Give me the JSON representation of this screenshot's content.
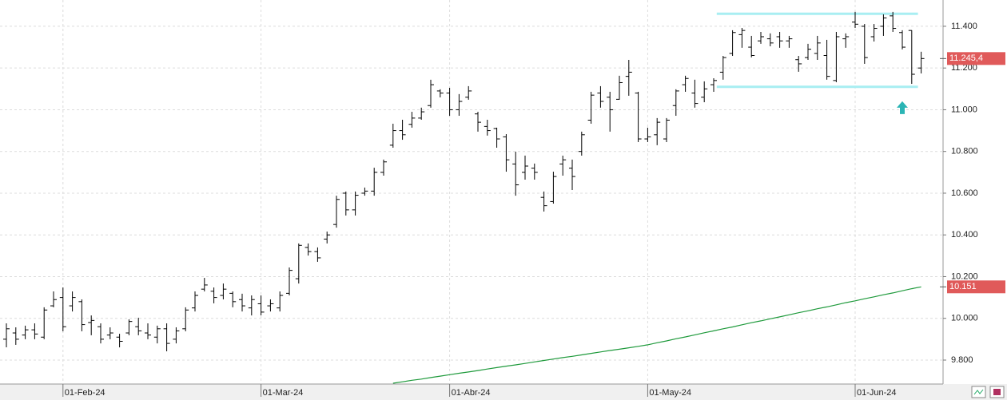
{
  "chart_data": {
    "type": "ohlc",
    "categories": [
      null,
      null,
      null,
      null,
      null,
      null,
      "01-Feb-24",
      null,
      null,
      null,
      null,
      null,
      null,
      null,
      null,
      null,
      null,
      null,
      null,
      null,
      null,
      null,
      null,
      null,
      null,
      null,
      null,
      "01-Mar-24",
      null,
      null,
      null,
      null,
      null,
      null,
      null,
      null,
      null,
      null,
      null,
      null,
      null,
      null,
      null,
      null,
      null,
      null,
      null,
      "01-Abr-24",
      null,
      null,
      null,
      null,
      null,
      null,
      null,
      null,
      null,
      null,
      null,
      null,
      null,
      null,
      null,
      null,
      null,
      null,
      null,
      null,
      "01-May-24",
      null,
      null,
      null,
      null,
      null,
      null,
      null,
      null,
      null,
      null,
      null,
      null,
      null,
      null,
      null,
      null,
      null,
      null,
      null,
      null,
      null,
      "01-Jun-24",
      null,
      null,
      null,
      null,
      null,
      null,
      null
    ],
    "series": [
      {
        "type": "ohlc",
        "color": "#000000",
        "open": [
          9900,
          9930,
          9920,
          9945,
          9910,
          10060,
          10100,
          10060,
          10080,
          9980,
          9960,
          9920,
          9910,
          9930,
          9960,
          9930,
          9910,
          9950,
          9900,
          9950,
          10050,
          10140,
          10130,
          10110,
          10120,
          10090,
          10050,
          10070,
          10060,
          10050,
          10120,
          10190,
          10340,
          10320,
          10380,
          10450,
          10600,
          10520,
          10600,
          10610,
          10700,
          10830,
          10900,
          10930,
          10960,
          11020,
          11090,
          11080,
          11000,
          11060,
          10980,
          10920,
          10910,
          10870,
          10740,
          10700,
          10720,
          10580,
          10560,
          10740,
          10720,
          10800,
          10950,
          11080,
          11060,
          11050,
          11160,
          11080,
          10860,
          10880,
          10860,
          11020,
          11120,
          11080,
          11060,
          11120,
          11180,
          11270,
          11360,
          11300,
          11330,
          11340,
          11350,
          11330,
          11240,
          11250,
          11270,
          11260,
          11140,
          11340,
          11420,
          11400,
          11350,
          11400,
          11450,
          11370,
          11380,
          11200
        ],
        "high": [
          9976,
          9957,
          9965,
          9976,
          10053,
          10129,
          10148,
          10129,
          10091,
          10014,
          9976,
          9957,
          9926,
          9995,
          10003,
          9976,
          9965,
          9976,
          9957,
          10053,
          10129,
          10194,
          10148,
          10167,
          10129,
          10118,
          10110,
          10110,
          10091,
          10129,
          10244,
          10359,
          10359,
          10340,
          10416,
          10588,
          10608,
          10608,
          10627,
          10722,
          10761,
          10933,
          10952,
          10990,
          11010,
          11144,
          11098,
          11105,
          11075,
          11113,
          10990,
          10952,
          10914,
          10883,
          10799,
          10780,
          10742,
          10608,
          10703,
          10780,
          10761,
          10895,
          11086,
          11113,
          11086,
          11163,
          11239,
          11086,
          10914,
          10960,
          10960,
          11098,
          11163,
          11144,
          11136,
          11151,
          11258,
          11381,
          11392,
          11354,
          11373,
          11366,
          11373,
          11354,
          11258,
          11316,
          11354,
          11335,
          11373,
          11366,
          11469,
          11411,
          11411,
          11457,
          11469,
          11381,
          11381,
          11278
        ],
        "low": [
          9861,
          9873,
          9900,
          9900,
          9900,
          10053,
          9938,
          10033,
          9938,
          9919,
          9880,
          9900,
          9861,
          9919,
          9919,
          9900,
          9880,
          9842,
          9880,
          9938,
          10033,
          10129,
          10072,
          10091,
          10053,
          10033,
          10014,
          10014,
          10033,
          10033,
          10110,
          10167,
          10301,
          10271,
          10359,
          10435,
          10493,
          10493,
          10588,
          10588,
          10684,
          10818,
          10856,
          10914,
          10952,
          11010,
          11059,
          10971,
          10971,
          11048,
          10895,
          10876,
          10818,
          10703,
          10588,
          10665,
          10665,
          10512,
          10550,
          10684,
          10615,
          10780,
          10933,
          11010,
          10895,
          11048,
          11067,
          10845,
          10845,
          10830,
          10845,
          10971,
          11086,
          11010,
          11036,
          11086,
          11144,
          11258,
          11297,
          11251,
          11316,
          11304,
          11297,
          11297,
          11182,
          11239,
          11239,
          11144,
          11132,
          11297,
          11392,
          11220,
          11327,
          11354,
          11373,
          11289,
          11124,
          11174
        ],
        "close": [
          9950,
          9900,
          9945,
          9925,
          10040,
          10090,
          9960,
          10100,
          9970,
          9990,
          9900,
          9930,
          9890,
          9985,
          9940,
          9920,
          9950,
          9880,
          9940,
          10040,
          10110,
          10160,
          10100,
          10140,
          10080,
          10060,
          10090,
          10030,
          10070,
          10110,
          10230,
          10350,
          10320,
          10290,
          10400,
          10570,
          10520,
          10590,
          10610,
          10700,
          10750,
          10900,
          10880,
          10960,
          10990,
          11120,
          11080,
          11000,
          11040,
          11090,
          10940,
          10900,
          10860,
          10760,
          10640,
          10730,
          10700,
          10540,
          10680,
          10760,
          10680,
          10880,
          11070,
          11040,
          11000,
          11130,
          11180,
          10860,
          10870,
          10940,
          10950,
          11090,
          11150,
          11030,
          11100,
          11140,
          11250,
          11370,
          11380,
          11260,
          11350,
          11320,
          11330,
          11340,
          11220,
          11290,
          11320,
          11160,
          11350,
          11350,
          11410,
          11250,
          11390,
          11440,
          11390,
          11300,
          11170,
          11245.4
        ]
      },
      {
        "type": "line",
        "color": "#1f9a3c",
        "values": [
          null,
          null,
          null,
          null,
          null,
          null,
          null,
          null,
          null,
          null,
          null,
          null,
          null,
          null,
          null,
          null,
          null,
          null,
          null,
          null,
          null,
          null,
          null,
          null,
          null,
          null,
          null,
          null,
          null,
          null,
          null,
          null,
          null,
          null,
          null,
          null,
          null,
          null,
          null,
          null,
          null,
          9689,
          9696,
          9703,
          9709,
          9716,
          9723,
          9730,
          9737,
          9743,
          9750,
          9757,
          9764,
          9771,
          9777,
          9784,
          9791,
          9798,
          9805,
          9812,
          9818,
          9825,
          9832,
          9839,
          9846,
          9852,
          9859,
          9866,
          9873,
          9883,
          9892,
          9902,
          9911,
          9921,
          9931,
          9940,
          9950,
          9959,
          9969,
          9979,
          9988,
          9998,
          10007,
          10017,
          10027,
          10036,
          10046,
          10055,
          10065,
          10075,
          10084,
          10094,
          10103,
          10113,
          10122,
          10132,
          10142,
          10151
        ]
      }
    ],
    "ylim": [
      9689,
      11526
    ],
    "yticks": [
      {
        "value": 9800,
        "label": "9.800"
      },
      {
        "value": 10000,
        "label": "10.000"
      },
      {
        "value": 10200,
        "label": "10.200"
      },
      {
        "value": 10400,
        "label": "10.400"
      },
      {
        "value": 10600,
        "label": "10.600"
      },
      {
        "value": 10800,
        "label": "10.800"
      },
      {
        "value": 11000,
        "label": "11.000"
      },
      {
        "value": 11200,
        "label": "11.200"
      },
      {
        "value": 11400,
        "label": "11.400"
      }
    ],
    "grid": true,
    "channel_lines": [
      {
        "value": 11460,
        "from": 76,
        "to": 97,
        "color": "#a8eef2"
      },
      {
        "value": 11110,
        "from": 76,
        "to": 97,
        "color": "#a8eef2"
      }
    ],
    "arrows": [
      {
        "x": 95,
        "value": 11010,
        "color": "#2bb5b5"
      }
    ],
    "price_tags": [
      {
        "value": 11245.4,
        "label": "11.245,4",
        "color": "#e05a5a"
      },
      {
        "value": 10151,
        "label": "10.151",
        "color": "#e05a5a"
      }
    ]
  }
}
